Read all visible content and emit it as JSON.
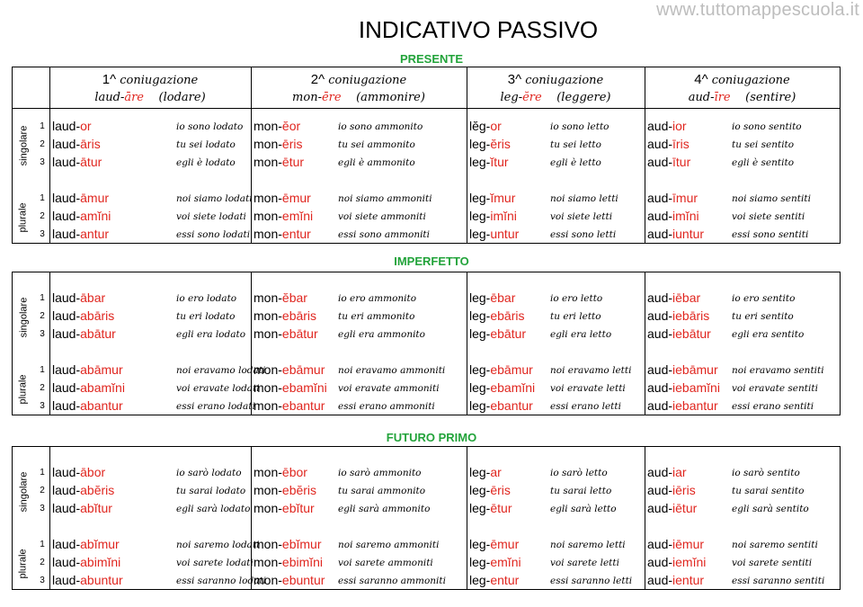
{
  "watermark": "www.tuttomappescuola.it",
  "title": "INDICATIVO PASSIVO",
  "labels": {
    "singolare": "singolare",
    "plurale": "plurale",
    "persons": [
      "1",
      "2",
      "3",
      "1",
      "2",
      "3"
    ]
  },
  "colors": {
    "ending": "#e0261f",
    "section": "#22a33a"
  },
  "conjugations": [
    {
      "num": "1^",
      "label": "coniugazione",
      "stem": "laud-",
      "ending": "āre",
      "meaning": "(lodare)"
    },
    {
      "num": "2^",
      "label": "coniugazione",
      "stem": "mon-",
      "ending": "ēre",
      "meaning": "(ammonire)"
    },
    {
      "num": "3^",
      "label": "coniugazione",
      "stem": "leg-",
      "ending": "ĕre",
      "meaning": "(leggere)"
    },
    {
      "num": "4^",
      "label": "coniugazione",
      "stem": "aud-",
      "ending": "īre",
      "meaning": "(sentire)"
    }
  ],
  "sections": [
    {
      "name": "PRESENTE",
      "rows": [
        [
          [
            "laud-",
            "or",
            "io sono lodato"
          ],
          [
            "mon-",
            "ĕor",
            "io sono ammonito"
          ],
          [
            "lĕg-",
            "or",
            "io sono letto"
          ],
          [
            "aud-",
            "ior",
            "io sono sentito"
          ]
        ],
        [
          [
            "laud-",
            "āris",
            "tu sei lodato"
          ],
          [
            "mon-",
            "ēris",
            "tu sei ammonito"
          ],
          [
            "leg-",
            "ĕris",
            "tu sei letto"
          ],
          [
            "aud-",
            "īris",
            "tu sei sentito"
          ]
        ],
        [
          [
            "laud-",
            "ātur",
            "egli è lodato"
          ],
          [
            "mon-",
            "ētur",
            "egli è ammonito"
          ],
          [
            "leg-",
            "ĭtur",
            "egli è letto"
          ],
          [
            "aud-",
            "ītur",
            "egli è sentito"
          ]
        ],
        [
          [
            "laud-",
            "āmur",
            "noi siamo lodati"
          ],
          [
            "mon-",
            "ēmur",
            "noi siamo ammoniti"
          ],
          [
            "leg-",
            "ĭmur",
            "noi siamo letti"
          ],
          [
            "aud-",
            "īmur",
            "noi siamo sentiti"
          ]
        ],
        [
          [
            "laud-",
            "amĭni",
            "voi siete lodati"
          ],
          [
            "mon-",
            "emĭni",
            "voi siete ammoniti"
          ],
          [
            "leg-",
            "imĭni",
            "voi siete letti"
          ],
          [
            "aud-",
            "imĭni",
            "voi siete sentiti"
          ]
        ],
        [
          [
            "laud-",
            "antur",
            "essi sono lodati"
          ],
          [
            "mon-",
            "entur",
            "essi sono ammoniti"
          ],
          [
            "leg-",
            "untur",
            "essi sono letti"
          ],
          [
            "aud-",
            "iuntur",
            "essi sono sentiti"
          ]
        ]
      ]
    },
    {
      "name": "IMPERFETTO",
      "rows": [
        [
          [
            "laud-",
            "ābar",
            "io ero lodato"
          ],
          [
            "mon-",
            "ĕbar",
            "io ero ammonito"
          ],
          [
            "leg-",
            "ēbar",
            "io ero letto"
          ],
          [
            "aud-",
            "iēbar",
            "io ero sentito"
          ]
        ],
        [
          [
            "laud-",
            "abāris",
            "tu eri lodato"
          ],
          [
            "mon-",
            "ebāris",
            "tu eri ammonito"
          ],
          [
            "leg-",
            "ebāris",
            "tu eri letto"
          ],
          [
            "aud-",
            "iebāris",
            "tu eri sentito"
          ]
        ],
        [
          [
            "laud-",
            "abātur",
            "egli era lodato"
          ],
          [
            "mon-",
            "ebātur",
            "egli era ammonito"
          ],
          [
            "leg-",
            "ebātur",
            "egli era letto"
          ],
          [
            "aud-",
            "iebātur",
            "egli era sentito"
          ]
        ],
        [
          [
            "laud-",
            "abāmur",
            "noi eravamo lodati"
          ],
          [
            "mon-",
            "ebāmur",
            "noi eravamo ammoniti"
          ],
          [
            "leg-",
            "ebāmur",
            "noi eravamo letti"
          ],
          [
            "aud-",
            "iebāmur",
            "noi eravamo sentiti"
          ]
        ],
        [
          [
            "laud-",
            "abamĭni",
            "voi eravate lodati"
          ],
          [
            "mon-",
            "ebamĭni",
            "voi eravate ammoniti"
          ],
          [
            "leg-",
            "ebamĭni",
            "voi eravate letti"
          ],
          [
            "aud-",
            "iebamĭni",
            "voi eravate sentiti"
          ]
        ],
        [
          [
            "laud-",
            "abantur",
            "essi erano lodati"
          ],
          [
            "mon-",
            "ebantur",
            "essi erano ammoniti"
          ],
          [
            "leg-",
            "ebantur",
            "essi erano letti"
          ],
          [
            "aud-",
            "iebantur",
            "essi erano sentiti"
          ]
        ]
      ]
    },
    {
      "name": "FUTURO PRIMO",
      "rows": [
        [
          [
            "laud-",
            "ābor",
            "io sarò lodato"
          ],
          [
            "mon-",
            "ēbor",
            "io sarò ammonito"
          ],
          [
            "leg-",
            "ar",
            "io sarò letto"
          ],
          [
            "aud-",
            "iar",
            "io sarò sentito"
          ]
        ],
        [
          [
            "laud-",
            "abĕris",
            "tu sarai lodato"
          ],
          [
            "mon-",
            "ebĕris",
            "tu sarai ammonito"
          ],
          [
            "leg-",
            "ēris",
            "tu sarai letto"
          ],
          [
            "aud-",
            "iēris",
            "tu sarai sentito"
          ]
        ],
        [
          [
            "laud-",
            "abĭtur",
            "egli sarà lodato"
          ],
          [
            "mon-",
            "ebĭtur",
            "egli sarà ammonito"
          ],
          [
            "leg-",
            "ētur",
            "egli sarà letto"
          ],
          [
            "aud-",
            "iētur",
            "egli sarà sentito"
          ]
        ],
        [
          [
            "laud-",
            "abĭmur",
            "noi saremo lodati"
          ],
          [
            "mon-",
            "ebĭmur",
            "noi saremo ammoniti"
          ],
          [
            "leg-",
            "ēmur",
            "noi saremo letti"
          ],
          [
            "aud-",
            "iēmur",
            "noi saremo sentiti"
          ]
        ],
        [
          [
            "laud-",
            "abimĭni",
            "voi sarete lodati"
          ],
          [
            "mon-",
            "ebimĭni",
            "voi sarete ammoniti"
          ],
          [
            "leg-",
            "emĭni",
            "voi sarete letti"
          ],
          [
            "aud-",
            "iemĭni",
            "voi sarete sentiti"
          ]
        ],
        [
          [
            "laud-",
            "abuntur",
            "essi saranno lodati"
          ],
          [
            "mon-",
            "ebuntur",
            "essi saranno ammoniti"
          ],
          [
            "leg-",
            "entur",
            "essi saranno letti"
          ],
          [
            "aud-",
            "ientur",
            "essi saranno sentiti"
          ]
        ]
      ]
    }
  ]
}
